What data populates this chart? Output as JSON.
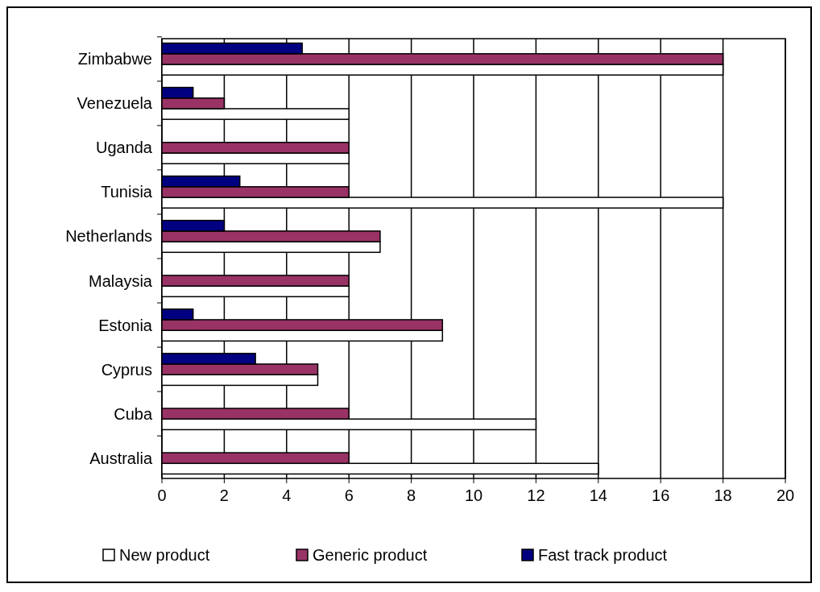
{
  "chart_data": {
    "type": "bar",
    "orientation": "horizontal",
    "categories": [
      "Zimbabwe",
      "Venezuela",
      "Uganda",
      "Tunisia",
      "Netherlands",
      "Malaysia",
      "Estonia",
      "Cyprus",
      "Cuba",
      "Australia"
    ],
    "series": [
      {
        "name": "New product",
        "color": "#ffffff",
        "values": [
          18,
          6,
          6,
          18,
          7,
          6,
          9,
          5,
          12,
          14
        ]
      },
      {
        "name": "Generic product",
        "color": "#993366",
        "values": [
          18,
          2,
          6,
          6,
          7,
          6,
          9,
          5,
          6,
          6
        ]
      },
      {
        "name": "Fast track product",
        "color": "#000080",
        "values": [
          4.5,
          1,
          null,
          2.5,
          2,
          null,
          1,
          3,
          null,
          null
        ]
      }
    ],
    "xlim": [
      0,
      20
    ],
    "xticks": [
      0,
      2,
      4,
      6,
      8,
      10,
      12,
      14,
      16,
      18,
      20
    ],
    "grid": "x",
    "legend": "bottom"
  }
}
